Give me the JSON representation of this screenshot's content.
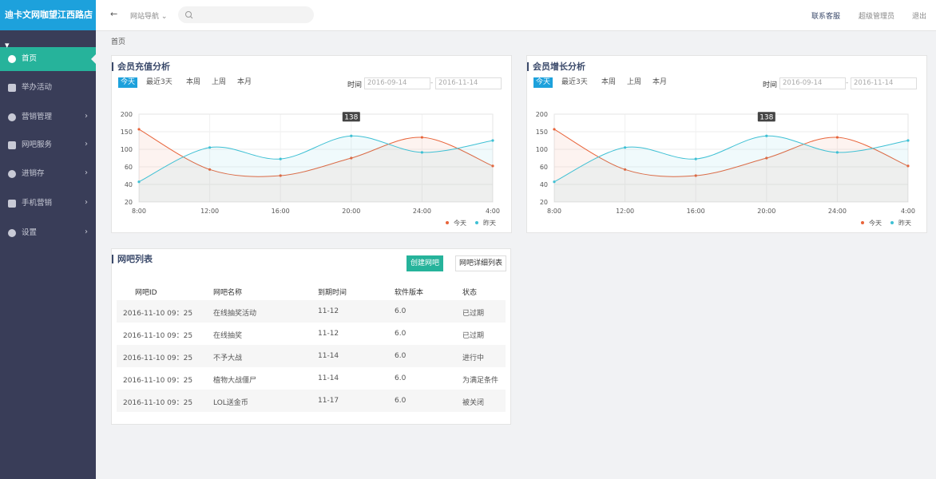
{
  "brand": "迪卡文网咖望江西路店",
  "topbar": {
    "nav": "网站导航",
    "links": [
      "联系客服",
      "超级管理员",
      "退出"
    ]
  },
  "sidebar": [
    "首页",
    "举办活动",
    "营销管理",
    "网吧服务",
    "进销存",
    "手机营销",
    "设置"
  ],
  "breadcrumb": "首页",
  "panels": [
    {
      "title": "会员充值分析",
      "filters": [
        "今天",
        "最近3天",
        "本周",
        "上周",
        "本月"
      ],
      "time_label": "时间",
      "date_from": "2016-09-14",
      "date_separator": "-",
      "date_to": "2016-11-14",
      "chart": {
        "type": "line",
        "categories": [
          "8:00",
          "12:00",
          "16:00",
          "20:00",
          "24:00",
          "4:00"
        ],
        "ylim": [
          20,
          200
        ],
        "yticks": [
          20,
          40,
          60,
          100,
          150,
          200
        ],
        "grid": true,
        "series": [
          {
            "name": "今天",
            "color": "#e8643a",
            "values": [
              157,
              57,
              50,
              80,
              134,
              62
            ]
          },
          {
            "name": "昨天",
            "color": "#3ec0d4",
            "values": [
              43,
              105,
              78,
              138,
              93,
              125
            ]
          }
        ]
      }
    },
    {
      "title": "会员增长分析",
      "filters": [
        "今天",
        "最近3天",
        "本周",
        "上周",
        "本月"
      ],
      "time_label": "时间",
      "date_from": "2016-09-14",
      "date_separator": "-",
      "date_to": "2016-11-14",
      "chart": {
        "type": "line",
        "categories": [
          "8:00",
          "12:00",
          "16:00",
          "20:00",
          "24:00",
          "4:00"
        ],
        "ylim": [
          20,
          200
        ],
        "yticks": [
          20,
          40,
          60,
          100,
          150,
          200
        ],
        "grid": true,
        "series": [
          {
            "name": "今天",
            "color": "#e8643a",
            "values": [
              157,
              57,
              50,
              80,
              134,
              62
            ]
          },
          {
            "name": "昨天",
            "color": "#3ec0d4",
            "values": [
              43,
              105,
              78,
              138,
              93,
              125
            ]
          }
        ]
      }
    }
  ],
  "table_panel": {
    "title": "网吧列表",
    "buttons": [
      "创建网吧",
      "网吧详细列表"
    ],
    "columns": [
      "网吧ID",
      "网吧名称",
      "到期时间",
      "软件版本",
      "状态"
    ],
    "rows": [
      [
        "2016-11-10 09：25",
        "在线抽奖活动",
        "11-12",
        "6.0",
        "已过期"
      ],
      [
        "2016-11-10 09：25",
        "在线抽奖",
        "11-12",
        "6.0",
        "已过期"
      ],
      [
        "2016-11-10 09：25",
        "不予大战",
        "11-14",
        "6.0",
        "进行中"
      ],
      [
        "2016-11-10 09：25",
        "植物大战僵尸",
        "11-14",
        "6.0",
        "为满足条件"
      ],
      [
        "2016-11-10 09：25",
        "LOL送金币",
        "11-17",
        "6.0",
        "被关闭"
      ]
    ]
  }
}
